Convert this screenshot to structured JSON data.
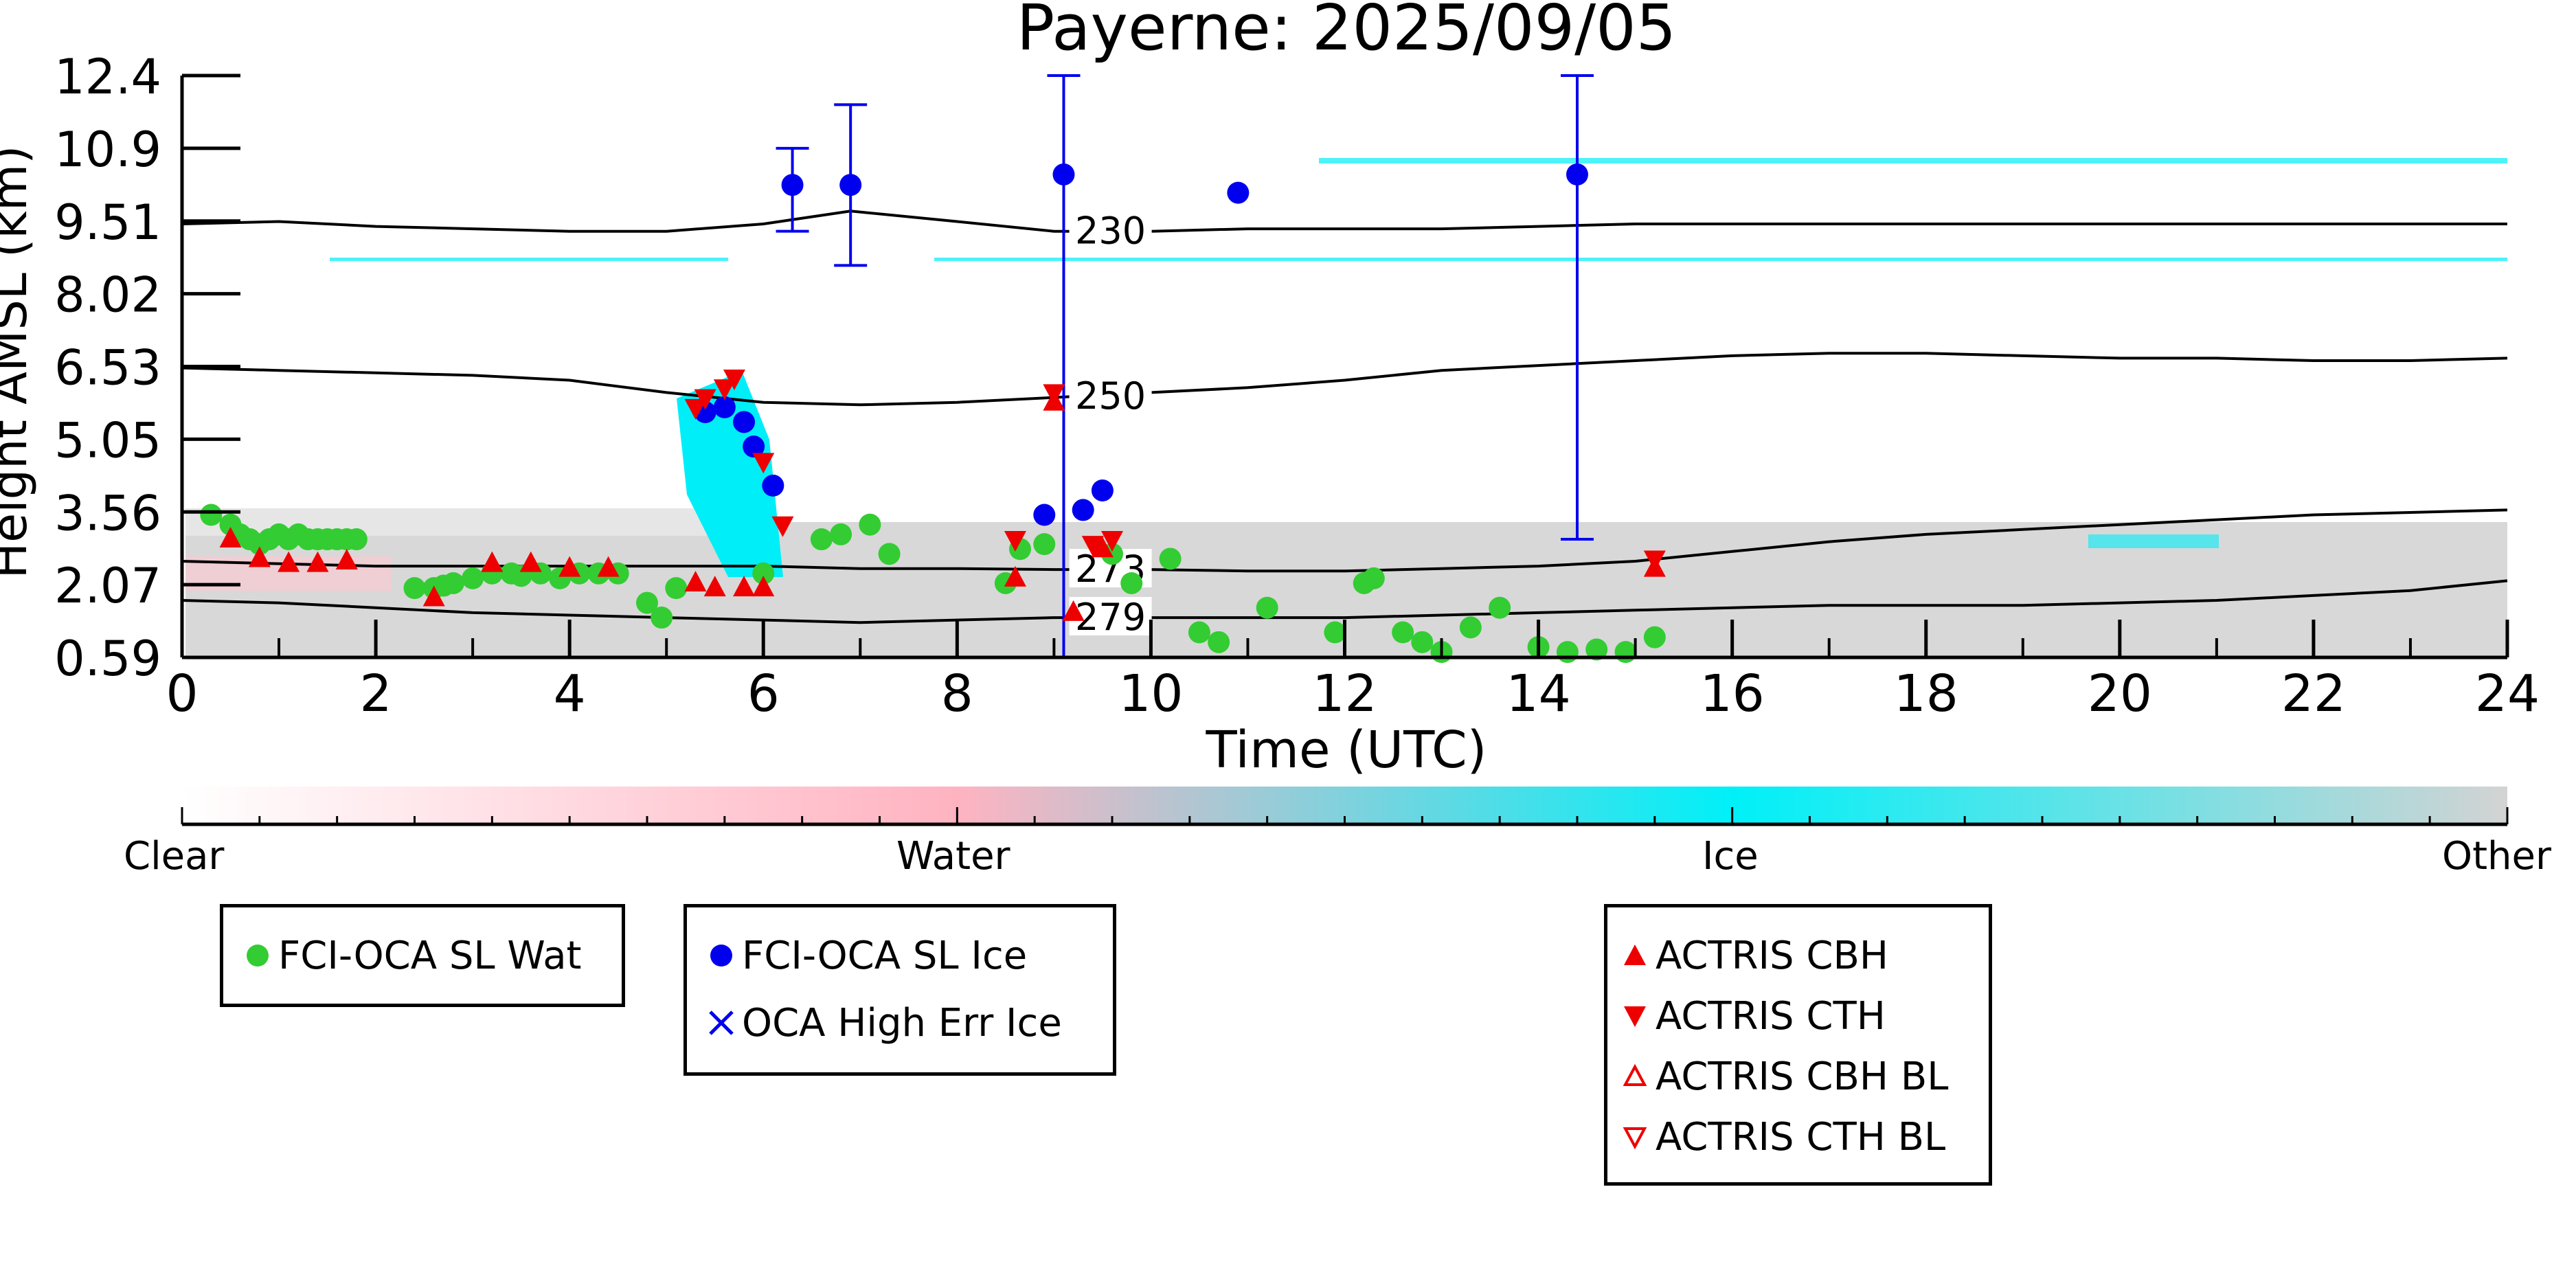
{
  "chart_data": {
    "type": "scatter",
    "title": "Payerne: 2025/09/05",
    "xlabel": "Time (UTC)",
    "ylabel": "Height AMSL (km)",
    "xlim": [
      0,
      24
    ],
    "ylim": [
      0.59,
      12.4
    ],
    "xticks": [
      "0",
      "2",
      "4",
      "6",
      "8",
      "10",
      "12",
      "14",
      "16",
      "18",
      "20",
      "22",
      "24"
    ],
    "yticks": [
      "0.59",
      "2.07",
      "3.56",
      "5.05",
      "6.53",
      "8.02",
      "9.51",
      "10.9",
      "12.4"
    ],
    "ytick_values": [
      0.59,
      2.07,
      3.56,
      5.05,
      6.53,
      8.02,
      9.51,
      10.9,
      12.4
    ],
    "isotherms": [
      {
        "label": "230",
        "x": [
          0,
          1,
          2,
          3,
          4,
          5,
          6,
          6.9,
          8,
          9,
          10,
          11,
          12,
          13,
          14,
          15,
          16,
          17,
          18,
          19,
          20,
          21,
          22,
          23,
          24
        ],
        "y": [
          9.45,
          9.5,
          9.4,
          9.35,
          9.3,
          9.3,
          9.45,
          9.7,
          9.5,
          9.3,
          9.3,
          9.35,
          9.35,
          9.35,
          9.4,
          9.45,
          9.45,
          9.45,
          9.45,
          9.45,
          9.45,
          9.45,
          9.45,
          9.45,
          9.45
        ]
      },
      {
        "label": "250",
        "x": [
          0,
          1,
          2,
          3,
          4,
          5,
          6,
          7,
          8,
          9,
          10,
          11,
          12,
          13,
          14,
          15,
          16,
          17,
          18,
          19,
          20,
          21,
          22,
          23,
          24
        ],
        "y": [
          6.5,
          6.45,
          6.4,
          6.35,
          6.25,
          6.0,
          5.8,
          5.75,
          5.8,
          5.9,
          6.0,
          6.1,
          6.25,
          6.45,
          6.55,
          6.65,
          6.75,
          6.8,
          6.8,
          6.75,
          6.7,
          6.7,
          6.65,
          6.65,
          6.7
        ]
      },
      {
        "label": "273",
        "x": [
          0,
          1,
          2,
          3,
          4,
          5,
          6,
          7,
          8,
          9,
          10,
          11,
          12,
          13,
          14,
          15,
          16,
          17,
          18,
          19,
          20,
          21,
          22,
          23,
          24
        ],
        "y": [
          2.55,
          2.5,
          2.45,
          2.45,
          2.45,
          2.45,
          2.45,
          2.4,
          2.4,
          2.38,
          2.38,
          2.35,
          2.35,
          2.4,
          2.45,
          2.55,
          2.75,
          2.95,
          3.1,
          3.2,
          3.3,
          3.4,
          3.5,
          3.55,
          3.6
        ]
      },
      {
        "label": "279",
        "x": [
          0,
          1,
          2,
          3,
          4,
          5,
          6,
          7,
          8,
          9,
          10,
          11,
          12,
          13,
          14,
          15,
          16,
          17,
          18,
          19,
          20,
          21,
          22,
          23,
          24
        ],
        "y": [
          1.75,
          1.7,
          1.6,
          1.5,
          1.45,
          1.4,
          1.35,
          1.3,
          1.35,
          1.4,
          1.4,
          1.4,
          1.4,
          1.45,
          1.5,
          1.55,
          1.6,
          1.65,
          1.65,
          1.65,
          1.7,
          1.75,
          1.85,
          1.95,
          2.15
        ]
      }
    ],
    "series": [
      {
        "name": "FCI-OCA SL Wat",
        "marker": "circle",
        "color": "#33cc33",
        "points": [
          [
            0.3,
            3.5
          ],
          [
            0.5,
            3.3
          ],
          [
            0.6,
            3.1
          ],
          [
            0.7,
            3.0
          ],
          [
            0.8,
            2.9
          ],
          [
            0.9,
            3.0
          ],
          [
            1.0,
            3.1
          ],
          [
            1.1,
            3.0
          ],
          [
            1.2,
            3.1
          ],
          [
            1.3,
            3.0
          ],
          [
            1.4,
            3.0
          ],
          [
            1.5,
            3.0
          ],
          [
            1.6,
            3.0
          ],
          [
            1.7,
            3.0
          ],
          [
            1.8,
            3.0
          ],
          [
            2.4,
            2.0
          ],
          [
            2.6,
            2.0
          ],
          [
            2.7,
            2.05
          ],
          [
            2.8,
            2.1
          ],
          [
            3.0,
            2.2
          ],
          [
            3.2,
            2.3
          ],
          [
            3.4,
            2.3
          ],
          [
            3.5,
            2.25
          ],
          [
            3.7,
            2.3
          ],
          [
            3.9,
            2.2
          ],
          [
            4.1,
            2.3
          ],
          [
            4.3,
            2.3
          ],
          [
            4.5,
            2.3
          ],
          [
            4.8,
            1.7
          ],
          [
            4.95,
            1.4
          ],
          [
            5.1,
            2.0
          ],
          [
            6.0,
            2.3
          ],
          [
            6.6,
            3.0
          ],
          [
            6.8,
            3.1
          ],
          [
            7.1,
            3.3
          ],
          [
            7.3,
            2.7
          ],
          [
            8.5,
            2.1
          ],
          [
            8.65,
            2.8
          ],
          [
            8.9,
            2.9
          ],
          [
            9.6,
            2.7
          ],
          [
            9.8,
            2.1
          ],
          [
            10.2,
            2.6
          ],
          [
            10.5,
            1.1
          ],
          [
            10.7,
            0.9
          ],
          [
            11.2,
            1.6
          ],
          [
            11.9,
            1.1
          ],
          [
            12.2,
            2.1
          ],
          [
            12.3,
            2.2
          ],
          [
            12.6,
            1.1
          ],
          [
            12.8,
            0.9
          ],
          [
            13.0,
            0.7
          ],
          [
            13.3,
            1.2
          ],
          [
            13.6,
            1.6
          ],
          [
            14.0,
            0.8
          ],
          [
            14.3,
            0.7
          ],
          [
            14.6,
            0.75
          ],
          [
            14.9,
            0.7
          ],
          [
            15.2,
            1.0
          ]
        ]
      },
      {
        "name": "FCI-OCA SL Ice",
        "marker": "circle",
        "color": "#0000ee",
        "points": [
          [
            6.3,
            10.2
          ],
          [
            6.9,
            10.2
          ],
          [
            9.1,
            10.4
          ],
          [
            10.9,
            10.05
          ],
          [
            14.4,
            10.4
          ],
          [
            5.4,
            5.6
          ],
          [
            5.6,
            5.7
          ],
          [
            5.8,
            5.4
          ],
          [
            5.9,
            4.9
          ],
          [
            6.1,
            4.1
          ],
          [
            8.9,
            3.5
          ],
          [
            9.3,
            3.6
          ],
          [
            9.5,
            4.0
          ]
        ],
        "error_y": [
          [
            6.3,
            9.3,
            10.9
          ],
          [
            6.9,
            8.6,
            11.8
          ],
          [
            9.1,
            0.59,
            12.4
          ],
          [
            14.4,
            3.0,
            12.4
          ]
        ]
      },
      {
        "name": "OCA High Err Ice",
        "marker": "x",
        "color": "#0000ee",
        "points": []
      },
      {
        "name": "ACTRIS CBH",
        "marker": "triangle-up",
        "color": "#ee0000",
        "points": [
          [
            0.5,
            3.0
          ],
          [
            0.8,
            2.6
          ],
          [
            1.1,
            2.5
          ],
          [
            1.4,
            2.5
          ],
          [
            1.7,
            2.55
          ],
          [
            2.6,
            1.8
          ],
          [
            3.2,
            2.5
          ],
          [
            3.6,
            2.5
          ],
          [
            4.0,
            2.4
          ],
          [
            4.4,
            2.4
          ],
          [
            5.3,
            2.1
          ],
          [
            5.5,
            2.0
          ],
          [
            5.8,
            2.0
          ],
          [
            6.0,
            2.0
          ],
          [
            8.6,
            2.2
          ],
          [
            9.0,
            5.8
          ],
          [
            9.2,
            1.5
          ],
          [
            9.5,
            2.8
          ],
          [
            15.2,
            2.4
          ]
        ]
      },
      {
        "name": "ACTRIS CTH",
        "marker": "triangle-down",
        "color": "#ee0000",
        "points": [
          [
            5.3,
            5.7
          ],
          [
            5.4,
            5.9
          ],
          [
            5.6,
            6.1
          ],
          [
            5.7,
            6.3
          ],
          [
            6.0,
            4.6
          ],
          [
            6.2,
            3.3
          ],
          [
            8.6,
            3.0
          ],
          [
            9.0,
            6.0
          ],
          [
            9.4,
            2.9
          ],
          [
            9.6,
            3.0
          ],
          [
            15.2,
            2.6
          ]
        ]
      },
      {
        "name": "ACTRIS CBH BL",
        "marker": "triangle-up-open",
        "color": "#ee0000",
        "points": []
      },
      {
        "name": "ACTRIS CTH BL",
        "marker": "triangle-down-open",
        "color": "#ee0000",
        "points": []
      }
    ],
    "colorbar": {
      "labels": [
        "Clear",
        "Water",
        "Ice",
        "Other"
      ],
      "colors": [
        "#ffffff",
        "#ffb3c1",
        "#00f0f8",
        "#d3d3d3"
      ]
    },
    "legend_placement": "below"
  }
}
